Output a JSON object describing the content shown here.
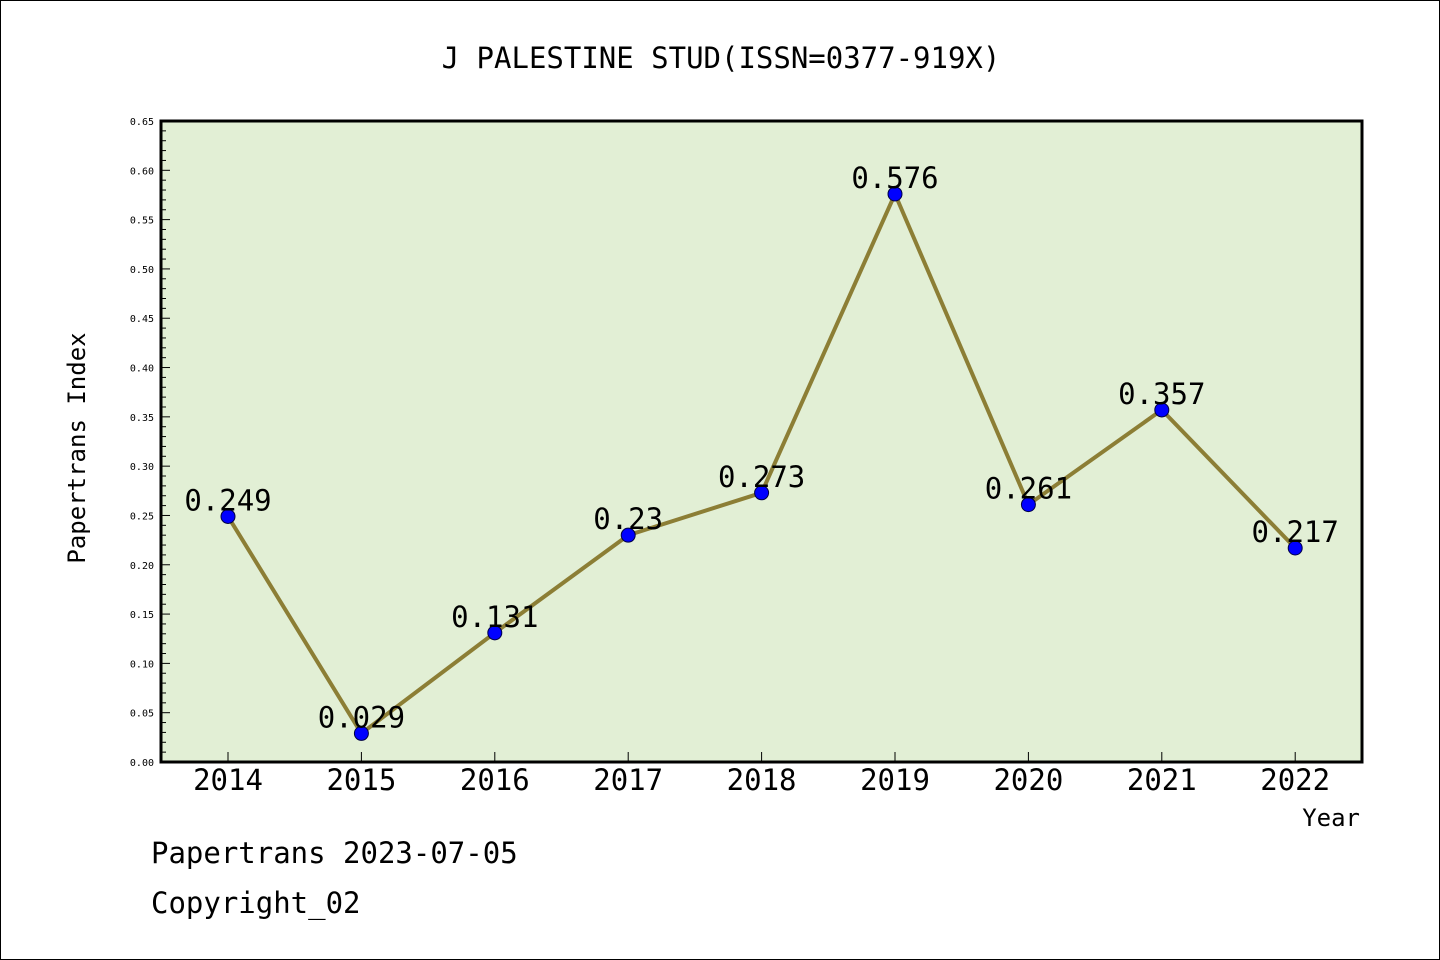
{
  "chart_data": {
    "type": "line",
    "title": "J PALESTINE STUD(ISSN=0377-919X)",
    "xlabel": "Year",
    "ylabel": "Papertrans Index",
    "categories": [
      "2014",
      "2015",
      "2016",
      "2017",
      "2018",
      "2019",
      "2020",
      "2021",
      "2022"
    ],
    "series": [
      {
        "values": [
          0.249,
          0.029,
          0.131,
          0.23,
          0.273,
          0.576,
          0.261,
          0.357,
          0.217
        ]
      }
    ],
    "data_labels": [
      "0.249",
      "0.029",
      "0.131",
      "0.23",
      "0.273",
      "0.576",
      "0.261",
      "0.357",
      "0.217"
    ],
    "ylim": [
      0,
      0.65
    ],
    "yticks": [
      "0.00",
      "0.05",
      "0.10",
      "0.15",
      "0.20",
      "0.25",
      "0.30",
      "0.35",
      "0.40",
      "0.45",
      "0.50",
      "0.55",
      "0.60",
      "0.65"
    ],
    "grid": false,
    "colors": {
      "plot_background": "#e2efd5",
      "line": "#8c7e35",
      "marker": "#0000ff",
      "axes": "#000000"
    }
  },
  "footer": {
    "line1": "Papertrans 2023-07-05",
    "line2": "Copyright_02"
  }
}
